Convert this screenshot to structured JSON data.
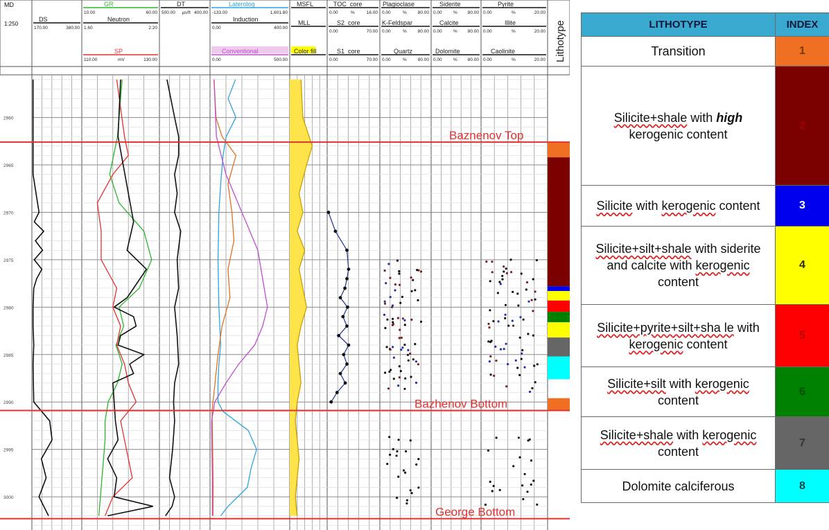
{
  "log": {
    "md_label": "MD",
    "md_scale": "1:250",
    "depth_ticks": [
      "2960",
      "2965",
      "2970",
      "2975",
      "2980",
      "2985",
      "2990",
      "2995",
      "3000"
    ],
    "depth_tick_values": [
      2960,
      2965,
      2970,
      2975,
      2980,
      2985,
      2990,
      2995,
      3000
    ],
    "depth_range": [
      2955.5,
      3003.5
    ],
    "track_headers": [
      {
        "name": "GR",
        "min": "10.00",
        "max": "60.00",
        "color": "#2bb52b"
      },
      {
        "name": "DS",
        "min": "170.00",
        "max": "380.00",
        "color": "#111111"
      },
      {
        "name": "Neutron",
        "min": "1.60",
        "max": "2.20",
        "color": "#111111"
      },
      {
        "name": "SP",
        "min": "110.00",
        "unit": "mV",
        "max": "130.00",
        "color": "#e23030"
      },
      {
        "name": "DT",
        "min": "500.00",
        "unit": "µs/ft",
        "max": "400.00",
        "color": "#111111"
      },
      {
        "name": "Laterolog",
        "min": "-133.00",
        "max": "1,601.80",
        "color": "#2aa3e0"
      },
      {
        "name": "Induction",
        "min": "0.00",
        "max": "400.00",
        "color": "#111111"
      },
      {
        "name": "Conventional",
        "min": "0.00",
        "max": "500.00",
        "color": "#c04bd0"
      },
      {
        "name": "MSFL",
        "min": "",
        "max": "",
        "color": "#111111"
      },
      {
        "name": "MLL",
        "min": "",
        "max": "",
        "color": "#111111"
      },
      {
        "name": "Color fill",
        "min": "",
        "max": "",
        "color": "#111111"
      },
      {
        "name": "TOC_core",
        "min": "0.00",
        "unit": "%",
        "max": "16.00",
        "color": "#111111"
      },
      {
        "name": "S2_core",
        "min": "0.00",
        "max": "70.00",
        "color": "#111111"
      },
      {
        "name": "S1_core",
        "min": "0.00",
        "max": "70.00",
        "color": "#111111"
      },
      {
        "name": "Plagioclase",
        "min": "0.00",
        "unit": "%",
        "max": "80.00",
        "color": "#111111"
      },
      {
        "name": "K-Feldspar",
        "min": "0.00",
        "unit": "%",
        "max": "80.00",
        "color": "#111111"
      },
      {
        "name": "Quartz",
        "min": "0.00",
        "unit": "%",
        "max": "80.00",
        "color": "#111111"
      },
      {
        "name": "Siderite",
        "min": "0.00",
        "unit": "%",
        "max": "80.00",
        "color": "#111111"
      },
      {
        "name": "Calcite",
        "min": "0.00",
        "unit": "%",
        "max": "80.00",
        "color": "#111111"
      },
      {
        "name": "Dolomite",
        "min": "0.00",
        "unit": "%",
        "max": "80.00",
        "color": "#111111"
      },
      {
        "name": "Pyrite",
        "min": "0.00",
        "unit": "%",
        "max": "20.00",
        "color": "#111111"
      },
      {
        "name": "Illite",
        "min": "0.00",
        "unit": "%",
        "max": "20.00",
        "color": "#111111"
      },
      {
        "name": "Caolinite",
        "min": "0.00",
        "unit": "%",
        "max": "20.00",
        "color": "#111111"
      }
    ],
    "lithotype_track_label": "Lithotype"
  },
  "chart_data": {
    "type": "line",
    "y_axis": "depth (MD, m)",
    "ylim": [
      2955.5,
      3003.5
    ],
    "horizons": [
      {
        "name": "Baznenov Top",
        "depth": 2962.6
      },
      {
        "name": "Bazhenov Bottom",
        "depth": 2990.9
      },
      {
        "name": "George Bottom",
        "depth": 3002.3
      }
    ],
    "horizon_color": "#e23030",
    "lithotype_column": [
      {
        "index": 1,
        "top": 2962.6,
        "bottom": 2964.2
      },
      {
        "index": 2,
        "top": 2964.2,
        "bottom": 2977.8
      },
      {
        "index": 3,
        "top": 2977.8,
        "bottom": 2978.3
      },
      {
        "index": 4,
        "top": 2978.3,
        "bottom": 2979.3
      },
      {
        "index": 5,
        "top": 2979.3,
        "bottom": 2980.5
      },
      {
        "index": 6,
        "top": 2980.5,
        "bottom": 2981.6
      },
      {
        "index": 4,
        "top": 2981.6,
        "bottom": 2983.2
      },
      {
        "index": 7,
        "top": 2983.2,
        "bottom": 2985.2
      },
      {
        "index": 8,
        "top": 2985.2,
        "bottom": 2987.6
      },
      {
        "index": 1,
        "top": 2989.6,
        "bottom": 2990.9
      }
    ],
    "series": [
      {
        "name": "GR",
        "color": "#2bb52b",
        "x_range": [
          10,
          60
        ],
        "track": 1,
        "depth": [
          2956,
          2962,
          2966,
          2969,
          2972,
          2975,
          2978,
          2980,
          2982,
          2984,
          2986,
          2988,
          2990,
          2992,
          2994,
          2996,
          2998,
          3000,
          3002
        ],
        "values": [
          36,
          33,
          28,
          34,
          50,
          55,
          47,
          34,
          37,
          32,
          36,
          33,
          27,
          25,
          25,
          24,
          23,
          22,
          21
        ]
      },
      {
        "name": "SP",
        "color": "#e23030",
        "x_range": [
          110,
          130
        ],
        "track": 1,
        "depth": [
          2956,
          2962,
          2964,
          2966,
          2969,
          2972,
          2975,
          2978,
          2980,
          2982,
          2984,
          2986,
          2988,
          2990,
          2992,
          2994,
          2996,
          2998,
          3000,
          3002
        ],
        "values": [
          119,
          121,
          122,
          118,
          114,
          115,
          115,
          119,
          118,
          120,
          119,
          121,
          122,
          124,
          120,
          121,
          122,
          123,
          118,
          116
        ]
      },
      {
        "name": "Neutron",
        "color": "#111111",
        "x_range": [
          1.6,
          2.2
        ],
        "track": 1,
        "depth": [
          2956,
          2962,
          2965,
          2968,
          2971,
          2974,
          2976,
          2978,
          2979,
          2980,
          2981,
          2982,
          2983,
          2984,
          2985,
          2986,
          2987,
          2988,
          2990,
          2992,
          2994,
          2996,
          2998,
          3000,
          3001,
          3002
        ],
        "values": [
          1.9,
          1.88,
          1.92,
          1.96,
          2.0,
          1.95,
          2.1,
          2.0,
          1.95,
          1.85,
          2.0,
          2.02,
          1.9,
          1.88,
          2.08,
          1.97,
          2.0,
          1.84,
          1.85,
          1.86,
          1.88,
          1.8,
          1.87,
          1.85,
          2.15,
          1.8
        ]
      },
      {
        "name": "DS",
        "color": "#111111",
        "x_range": [
          170,
          380
        ],
        "track": 0,
        "depth": [
          2956,
          2966,
          2970,
          2971,
          2972,
          2973,
          2974,
          2975,
          2976,
          2977,
          2978,
          2980,
          2982,
          2984,
          2986,
          2988,
          2990,
          2992,
          2994,
          2996,
          2998,
          3000,
          3002
        ],
        "values": [
          175,
          175,
          200,
          180,
          220,
          185,
          215,
          180,
          212,
          190,
          178,
          175,
          175,
          178,
          175,
          176,
          178,
          245,
          255,
          210,
          230,
          200,
          240
        ]
      },
      {
        "name": "DT",
        "color": "#111111",
        "x_range": [
          500,
          400
        ],
        "track": 2,
        "depth": [
          2956,
          2960,
          2962,
          2964,
          2966,
          2968,
          2970,
          2972,
          2975,
          2978,
          2980,
          2983,
          2986,
          2988,
          2990,
          2992,
          2995,
          2998,
          3000,
          3001,
          3002
        ],
        "values": [
          485,
          470,
          462,
          462,
          470,
          465,
          470,
          458,
          465,
          462,
          470,
          465,
          462,
          470,
          472,
          470,
          474,
          480,
          470,
          475,
          488
        ]
      },
      {
        "name": "Laterolog",
        "color": "#2aa3e0",
        "x_range": [
          -133,
          1601.8
        ],
        "track": 3,
        "depth": [
          2956,
          2958,
          2960,
          2962,
          2964,
          2967,
          2970,
          2975,
          2980,
          2984,
          2986,
          2988,
          2990,
          2991,
          2993,
          2995,
          2997,
          2999,
          3001,
          3002
        ],
        "values": [
          420,
          260,
          430,
          220,
          150,
          100,
          60,
          40,
          60,
          100,
          60,
          40,
          40,
          150,
          700,
          880,
          760,
          680,
          260,
          100
        ]
      },
      {
        "name": "Induction",
        "color": "#e07020",
        "x_range": [
          0,
          400
        ],
        "track": 3,
        "depth": [
          2956,
          2960,
          2962,
          2964,
          2967,
          2970,
          2973,
          2976,
          2979,
          2982,
          2985,
          2988,
          2990,
          2991,
          2993,
          2996,
          2999,
          3002
        ],
        "values": [
          20,
          30,
          60,
          130,
          90,
          110,
          120,
          90,
          100,
          60,
          40,
          25,
          15,
          10,
          12,
          14,
          16,
          15
        ]
      },
      {
        "name": "Conventional",
        "color": "#c04bd0",
        "x_range": [
          0,
          500
        ],
        "track": 3,
        "depth": [
          2956,
          2962,
          2966,
          2970,
          2974,
          2978,
          2980,
          2982,
          2984,
          2986,
          2988,
          2990,
          2992,
          2995,
          2998,
          3002
        ],
        "values": [
          25,
          40,
          100,
          200,
          300,
          340,
          360,
          330,
          280,
          180,
          100,
          30,
          10,
          12,
          15,
          15
        ]
      },
      {
        "name": "MSFL",
        "color": "#c9a000",
        "x_range": [
          0,
          100
        ],
        "track": 4,
        "depth": [
          2956,
          2960,
          2963,
          2965,
          2968,
          2970,
          2972,
          2974,
          2976,
          2978,
          2980,
          2982,
          2984,
          2986,
          2988,
          2990,
          2992,
          2994,
          2996,
          2998,
          3000,
          3002
        ],
        "values": [
          30,
          35,
          60,
          45,
          25,
          35,
          20,
          40,
          25,
          35,
          45,
          30,
          20,
          25,
          30,
          20,
          15,
          20,
          25,
          20,
          15,
          20
        ]
      },
      {
        "name": "TOC_core",
        "color": "#2b3aa0",
        "x_range": [
          0,
          16
        ],
        "track": 5,
        "depth": [
          2970,
          2972,
          2974,
          2976,
          2977,
          2978,
          2979,
          2980,
          2981,
          2982,
          2983,
          2984,
          2985,
          2986,
          2987,
          2988,
          2989,
          2990
        ],
        "values": [
          0.4,
          2.5,
          6,
          6.5,
          6,
          5.4,
          4,
          6.2,
          4.8,
          6,
          3.5,
          6.5,
          5,
          6,
          4,
          5.5,
          3,
          1.2
        ]
      }
    ]
  },
  "legend": {
    "header_lithotype": "LITHOTYPE",
    "header_index": "INDEX",
    "rows": [
      {
        "index": "1",
        "color": "#f07023",
        "text_color": "#7a3a00",
        "parts": [
          {
            "t": "Transition"
          }
        ]
      },
      {
        "index": "2",
        "color": "#7b0000",
        "text_color": "#a00000",
        "parts": [
          {
            "t": "Silicite+shale",
            "u": true
          },
          {
            "t": " with "
          },
          {
            "t": "high",
            "bi": true
          },
          {
            "t": " kerogenic content"
          }
        ]
      },
      {
        "index": "3",
        "color": "#0000ee",
        "text_color": "#ffffff",
        "parts": [
          {
            "t": "Silicite",
            "u": true
          },
          {
            "t": " with "
          },
          {
            "t": "kerogenic",
            "u": true
          },
          {
            "t": " content"
          }
        ]
      },
      {
        "index": "4",
        "color": "#ffff00",
        "text_color": "#2a2a00",
        "parts": [
          {
            "t": "Silicite+silt+shale",
            "u": true
          },
          {
            "t": " with siderite and calcite with "
          },
          {
            "t": "kerogenic",
            "u": true
          },
          {
            "t": " content"
          }
        ]
      },
      {
        "index": "5",
        "color": "#ff0000",
        "text_color": "#b00000",
        "parts": [
          {
            "t": "Silicite+pyrite+silt+sha le",
            "u": true
          },
          {
            "t": " with "
          },
          {
            "t": "kerogenic",
            "u": true
          },
          {
            "t": " content"
          }
        ]
      },
      {
        "index": "6",
        "color": "#008000",
        "text_color": "#004d00",
        "parts": [
          {
            "t": "Silicite+silt",
            "u": true
          },
          {
            "t": " with "
          },
          {
            "t": "kerogenic",
            "u": true
          },
          {
            "t": " content"
          }
        ]
      },
      {
        "index": "7",
        "color": "#666666",
        "text_color": "#333333",
        "parts": [
          {
            "t": "Silicite+shale",
            "u": true
          },
          {
            "t": " with "
          },
          {
            "t": "kerogenic",
            "u": true
          },
          {
            "t": " content"
          }
        ]
      },
      {
        "index": "8",
        "color": "#00ffff",
        "text_color": "#004444",
        "parts": [
          {
            "t": "Dolomite calciferous"
          }
        ]
      }
    ]
  }
}
